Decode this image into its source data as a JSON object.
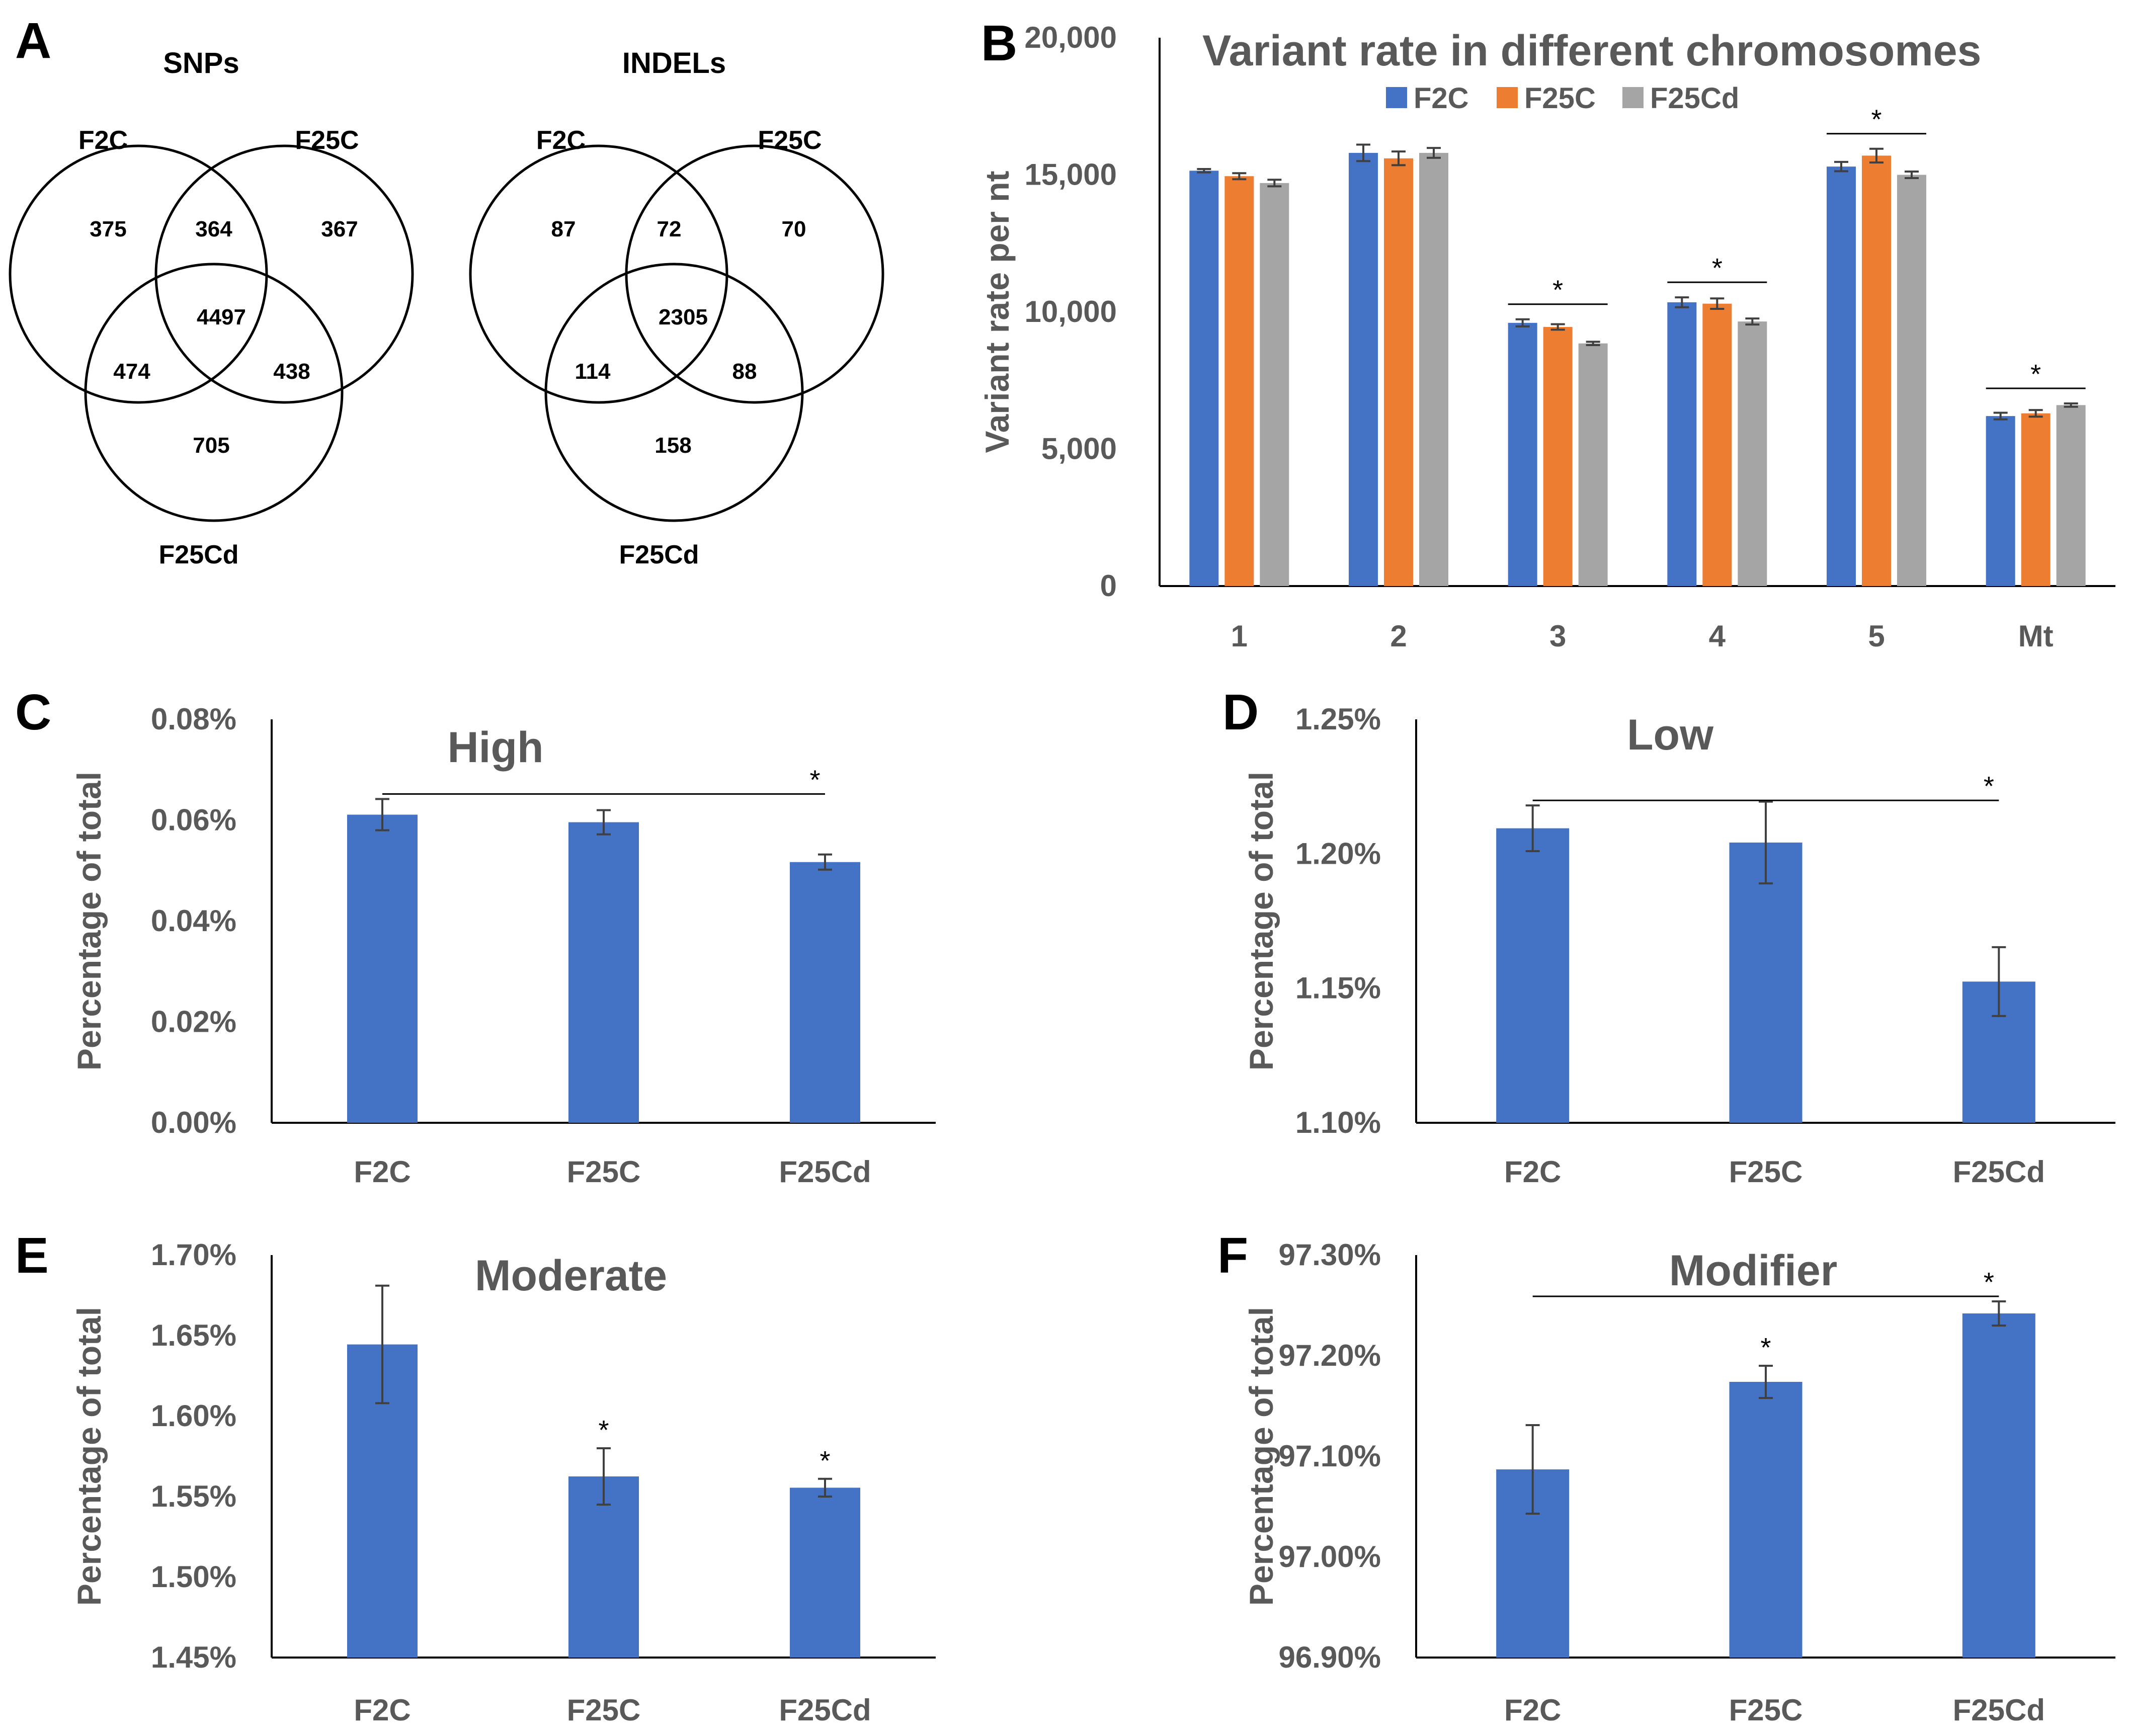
{
  "colors": {
    "F2C": "#4472C4",
    "F25C": "#ED7D31",
    "F25Cd": "#A5A5A5",
    "text": "#595959",
    "axis": "#000000"
  },
  "venn": [
    {
      "letter": "A",
      "title": "SNPs",
      "labels": [
        "F2C",
        "F25C",
        "F25Cd"
      ],
      "counts": {
        "only_F2C": "375",
        "F2C_F25C": "364",
        "only_F25C": "367",
        "all_three": "4497",
        "F2C_F25Cd": "474",
        "F25C_F25Cd": "438",
        "only_F25Cd": "705"
      }
    },
    {
      "letter": "",
      "title": "INDELs",
      "labels": [
        "F2C",
        "F25C",
        "F25Cd"
      ],
      "counts": {
        "only_F2C": "87",
        "F2C_F25C": "72",
        "only_F25C": "70",
        "all_three": "2305",
        "F2C_F25Cd": "114",
        "F25C_F25Cd": "88",
        "only_F25Cd": "158"
      }
    }
  ],
  "chart_data": [
    {
      "letter": "B",
      "type": "bar",
      "title": "Variant rate in different chromosomes",
      "xlabel": "",
      "ylabel": "Variant  rate per nt",
      "categories": [
        "1",
        "2",
        "3",
        "4",
        "5",
        "Mt"
      ],
      "ylim": [
        0,
        20000
      ],
      "yticks": [
        "0",
        "5,000",
        "10,000",
        "15,000",
        "20,000"
      ],
      "legend_position": "top",
      "series": [
        {
          "name": "F2C",
          "values": [
            15150,
            15800,
            9600,
            10350,
            15300,
            6200
          ],
          "errors": [
            60,
            300,
            130,
            180,
            170,
            120
          ]
        },
        {
          "name": "F25C",
          "values": [
            14950,
            15600,
            9450,
            10300,
            15700,
            6300
          ],
          "errors": [
            110,
            250,
            100,
            190,
            250,
            120
          ]
        },
        {
          "name": "F25Cd",
          "values": [
            14700,
            15800,
            8850,
            9650,
            15000,
            6600
          ],
          "errors": [
            120,
            180,
            60,
            110,
            120,
            60
          ]
        }
      ],
      "significance": [
        {
          "category": "3",
          "label": "*"
        },
        {
          "category": "4",
          "label": "*"
        },
        {
          "category": "5",
          "label": "*"
        },
        {
          "category": "Mt",
          "label": "*"
        }
      ]
    },
    {
      "letter": "C",
      "type": "bar",
      "title": "High",
      "xlabel": "",
      "ylabel": "Percentage of total",
      "categories": [
        "F2C",
        "F25C",
        "F25Cd"
      ],
      "ylim": [
        0,
        0.08
      ],
      "yticks": [
        "0.00%",
        "0.02%",
        "0.04%",
        "0.06%",
        "0.08%"
      ],
      "series": [
        {
          "name": "F2C",
          "values": [
            0.0611,
            0.0596,
            0.0517
          ],
          "errors": [
            0.0031,
            0.0024,
            0.0015
          ]
        }
      ],
      "significance": [
        {
          "type": "bracket",
          "from": "F2C",
          "to": "F25Cd",
          "label": "*"
        }
      ]
    },
    {
      "letter": "D",
      "type": "bar",
      "title": "Low",
      "xlabel": "",
      "ylabel": "Percentage of total",
      "categories": [
        "F2C",
        "F25C",
        "F25Cd"
      ],
      "ylim": [
        1.1,
        1.25
      ],
      "yticks": [
        "1.10%",
        "1.15%",
        "1.20%",
        "1.25%"
      ],
      "series": [
        {
          "name": "F2C",
          "values": [
            1.2095,
            1.2042,
            1.1525
          ],
          "errors": [
            0.0085,
            0.0152,
            0.0128
          ]
        }
      ],
      "significance": [
        {
          "type": "bracket",
          "from": "F2C",
          "to": "F25Cd",
          "label": "*"
        }
      ]
    },
    {
      "letter": "E",
      "type": "bar",
      "title": "Moderate",
      "xlabel": "",
      "ylabel": "Percentage of total",
      "categories": [
        "F2C",
        "F25C",
        "F25Cd"
      ],
      "ylim": [
        1.45,
        1.7
      ],
      "yticks": [
        "1.45%",
        "1.50%",
        "1.55%",
        "1.60%",
        "1.65%",
        "1.70%"
      ],
      "series": [
        {
          "name": "F2C",
          "values": [
            1.6445,
            1.5625,
            1.5555
          ],
          "errors": [
            0.0365,
            0.0175,
            0.0055
          ]
        }
      ],
      "significance": [
        {
          "type": "star",
          "category": "F25C",
          "label": "*"
        },
        {
          "type": "star",
          "category": "F25Cd",
          "label": "*"
        }
      ]
    },
    {
      "letter": "F",
      "type": "bar",
      "title": "Modifier",
      "xlabel": "",
      "ylabel": "Percentage of total",
      "categories": [
        "F2C",
        "F25C",
        "F25Cd"
      ],
      "ylim": [
        96.9,
        97.3
      ],
      "yticks": [
        "96.90%",
        "97.00%",
        "97.10%",
        "97.20%",
        "97.30%"
      ],
      "series": [
        {
          "name": "F2C",
          "values": [
            97.087,
            97.174,
            97.242
          ],
          "errors": [
            0.044,
            0.016,
            0.012
          ]
        }
      ],
      "significance": [
        {
          "type": "star",
          "category": "F25C",
          "label": "*"
        },
        {
          "type": "bracket",
          "from": "F2C",
          "to": "F25Cd",
          "label": "*"
        }
      ]
    }
  ]
}
